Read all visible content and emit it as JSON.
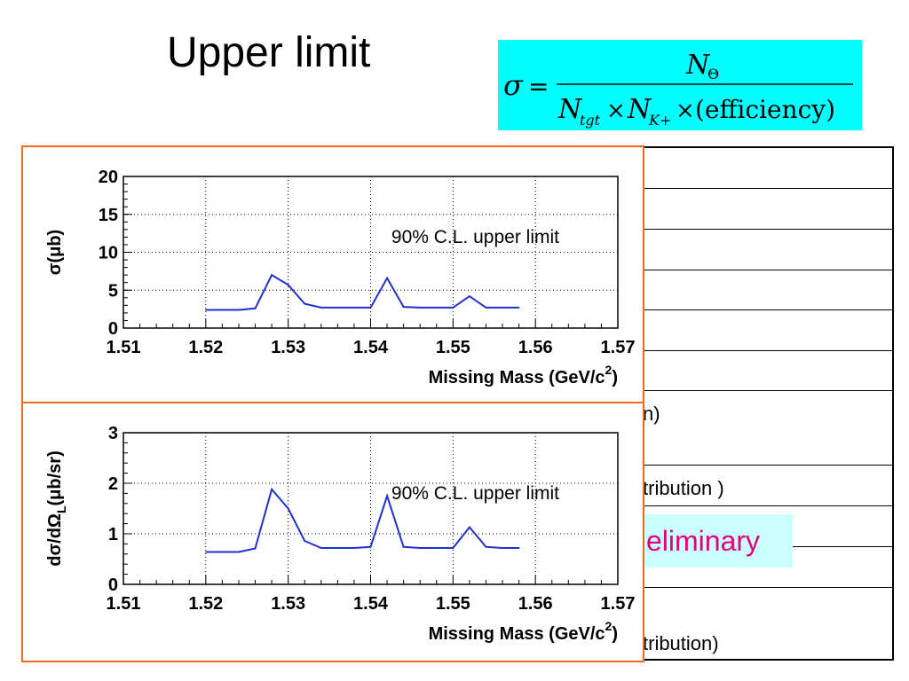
{
  "slide": {
    "title": "Upper limit",
    "formula": {
      "lhs": "σ",
      "eq": "=",
      "numerator": "N",
      "numerator_sub": "Θ",
      "den_n1": "N",
      "den_n1_sub": "tgt",
      "den_times1": "×",
      "den_n2": "N",
      "den_n2_sub": "K+",
      "den_times2": "×",
      "den_eff": "(efficiency)"
    },
    "table_fragments": {
      "row7": "n)",
      "row9": "tribution )",
      "row13": "tribution)"
    },
    "preliminary": "eliminary",
    "colors": {
      "formula_bg": "#00ffff",
      "prelim_bg": "#ccffff",
      "prelim_text": "#e6007e",
      "panel_border": "#f26a1b",
      "line": "#1f2fd6"
    }
  },
  "chart_data": [
    {
      "type": "line",
      "x": [
        1.52,
        1.524,
        1.526,
        1.528,
        1.53,
        1.532,
        1.534,
        1.536,
        1.538,
        1.54,
        1.542,
        1.544,
        1.546,
        1.548,
        1.55,
        1.552,
        1.554,
        1.556,
        1.558
      ],
      "series": [
        {
          "values": [
            2.4,
            2.4,
            2.6,
            7.0,
            5.7,
            3.2,
            2.7,
            2.7,
            2.7,
            2.7,
            6.6,
            2.8,
            2.7,
            2.7,
            2.7,
            4.2,
            2.7,
            2.7,
            2.7
          ],
          "color": "#1f2fd6"
        }
      ],
      "xlabel": "Missing Mass (GeV/c",
      "xlabel_sup": "2",
      "xlabel_end": ")",
      "ylabel": "σ(μb)",
      "xlim": [
        1.51,
        1.57
      ],
      "ylim": [
        0,
        20
      ],
      "xticks": [
        "1.51",
        "1.52",
        "1.53",
        "1.54",
        "1.55",
        "1.56",
        "1.57"
      ],
      "yticks": [
        "0",
        "5",
        "10",
        "15",
        "20"
      ],
      "annotation": "90% C.L. upper limit",
      "grid": true
    },
    {
      "type": "line",
      "x": [
        1.52,
        1.524,
        1.526,
        1.528,
        1.53,
        1.532,
        1.534,
        1.536,
        1.538,
        1.54,
        1.542,
        1.544,
        1.546,
        1.548,
        1.55,
        1.552,
        1.554,
        1.556,
        1.558
      ],
      "series": [
        {
          "values": [
            0.64,
            0.64,
            0.71,
            1.88,
            1.5,
            0.86,
            0.72,
            0.72,
            0.72,
            0.74,
            1.75,
            0.74,
            0.72,
            0.72,
            0.72,
            1.13,
            0.74,
            0.72,
            0.72
          ],
          "color": "#1f2fd6"
        }
      ],
      "xlabel": "Missing Mass (GeV/c",
      "xlabel_sup": "2",
      "xlabel_end": ")",
      "ylabel": "dσ/dΩ",
      "ylabel_sub": "L",
      "ylabel_end": "(μb/sr)",
      "xlim": [
        1.51,
        1.57
      ],
      "ylim": [
        0,
        3
      ],
      "xticks": [
        "1.51",
        "1.52",
        "1.53",
        "1.54",
        "1.55",
        "1.56",
        "1.57"
      ],
      "yticks": [
        "0",
        "1",
        "2",
        "3"
      ],
      "annotation": "90% C.L. upper limit",
      "grid": true
    }
  ]
}
